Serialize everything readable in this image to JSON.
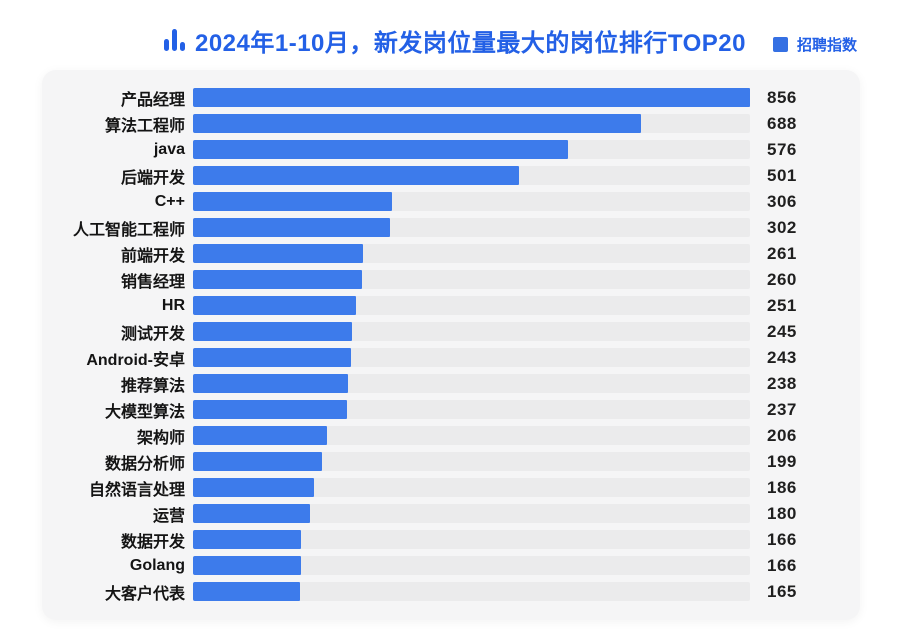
{
  "header": {
    "title": "2024年1-10月，新发岗位量最大的岗位排行TOP20",
    "legend_label": "招聘指数"
  },
  "colors": {
    "title_text": "#2360e6",
    "legend_text": "#2360e6",
    "legend_swatch": "#3570e3",
    "bar": "#3d7beb",
    "icon": "#2360e6",
    "track": "#ebebec",
    "card_bg": "#f5f5f6"
  },
  "chart_data": {
    "type": "bar",
    "orientation": "horizontal",
    "title": "2024年1-10月，新发岗位量最大的岗位排行TOP20",
    "legend": [
      "招聘指数"
    ],
    "legend_position": "top-right",
    "grid": false,
    "xlim": [
      0,
      856
    ],
    "categories": [
      "产品经理",
      "算法工程师",
      "java",
      "后端开发",
      "C++",
      "人工智能工程师",
      "前端开发",
      "销售经理",
      "HR",
      "测试开发",
      "Android-安卓",
      "推荐算法",
      "大模型算法",
      "架构师",
      "数据分析师",
      "自然语言处理",
      "运营",
      "数据开发",
      "Golang",
      "大客户代表"
    ],
    "values": [
      856,
      688,
      576,
      501,
      306,
      302,
      261,
      260,
      251,
      245,
      243,
      238,
      237,
      206,
      199,
      186,
      180,
      166,
      166,
      165
    ],
    "xlabel": "",
    "ylabel": ""
  }
}
